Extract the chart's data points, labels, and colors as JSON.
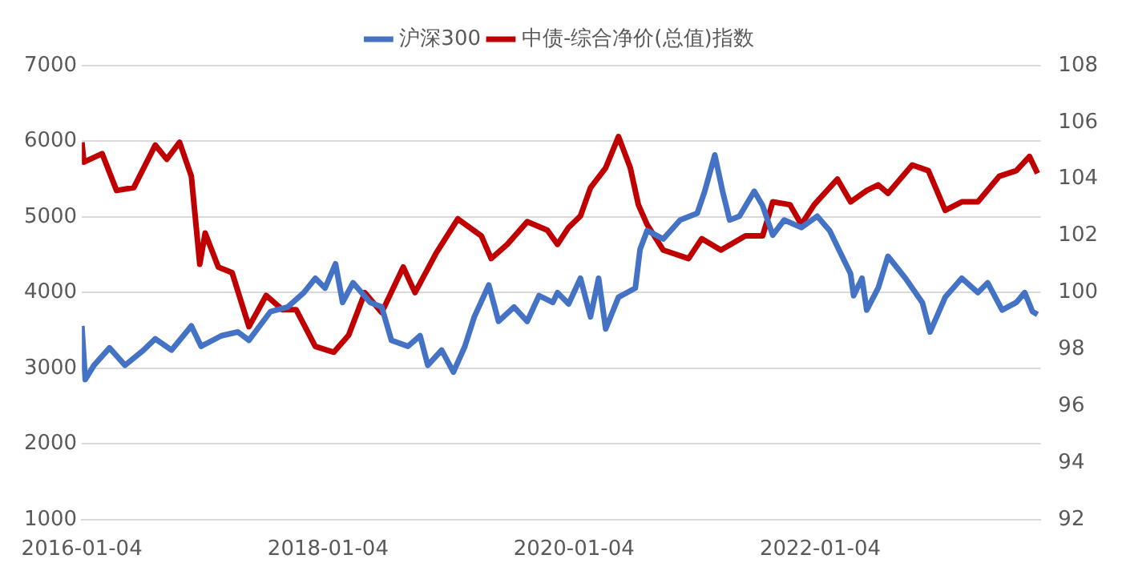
{
  "chart_data": {
    "type": "line",
    "xlim": [
      "2016-01-04",
      "2023-10-20"
    ],
    "xticks": [
      "2016-01-04",
      "2018-01-04",
      "2020-01-04",
      "2022-01-04"
    ],
    "ylim": [
      1000,
      7000
    ],
    "yticks": [
      1000,
      2000,
      3000,
      4000,
      5000,
      6000,
      7000
    ],
    "y2lim": [
      92,
      108
    ],
    "y2ticks": [
      92,
      94,
      96,
      98,
      100,
      102,
      104,
      106,
      108
    ],
    "grid": "y",
    "legend": "top",
    "marker": "none",
    "line_style": "solid",
    "series": [
      {
        "name": "沪深300",
        "color": "#4472c4",
        "x": [
          "2016-01-04",
          "2016-01-14",
          "2016-02-09",
          "2016-03-26",
          "2016-05-11",
          "2016-07-05",
          "2016-08-09",
          "2016-09-26",
          "2016-11-24",
          "2016-12-23",
          "2017-02-21",
          "2017-04-11",
          "2017-05-14",
          "2017-07-17",
          "2017-09-06",
          "2017-10-24",
          "2017-11-27",
          "2017-12-26",
          "2018-01-26",
          "2018-02-16",
          "2018-03-19",
          "2018-05-09",
          "2018-06-12",
          "2018-07-11",
          "2018-08-29",
          "2018-10-04",
          "2018-10-27",
          "2018-12-07",
          "2019-01-11",
          "2019-02-14",
          "2019-03-14",
          "2019-04-26",
          "2019-05-25",
          "2019-07-10",
          "2019-08-18",
          "2019-09-22",
          "2019-11-02",
          "2019-11-16",
          "2019-12-19",
          "2020-01-23",
          "2020-02-22",
          "2020-03-17",
          "2020-04-07",
          "2020-05-15",
          "2020-07-04",
          "2020-07-18",
          "2020-08-08",
          "2020-09-25",
          "2020-11-14",
          "2021-01-04",
          "2021-01-26",
          "2021-02-25",
          "2021-03-20",
          "2021-04-10",
          "2021-05-09",
          "2021-06-22",
          "2021-07-17",
          "2021-08-16",
          "2021-09-19",
          "2021-11-09",
          "2021-12-26",
          "2022-02-01",
          "2022-02-28",
          "2022-04-04",
          "2022-04-13",
          "2022-05-08",
          "2022-05-22",
          "2022-06-25",
          "2022-07-24",
          "2022-09-14",
          "2022-11-03",
          "2022-11-26",
          "2023-01-10",
          "2023-02-28",
          "2023-04-17",
          "2023-05-16",
          "2023-06-28",
          "2023-08-09",
          "2023-09-03",
          "2023-09-26",
          "2023-10-11"
        ],
        "values": [
          3560,
          2850,
          3040,
          3270,
          3040,
          3240,
          3390,
          3240,
          3560,
          3290,
          3430,
          3480,
          3370,
          3750,
          3810,
          4000,
          4190,
          4060,
          4380,
          3870,
          4130,
          3870,
          3810,
          3370,
          3290,
          3430,
          3040,
          3240,
          2950,
          3290,
          3680,
          4100,
          3620,
          3810,
          3620,
          3960,
          3870,
          4000,
          3850,
          4190,
          3680,
          4190,
          3520,
          3940,
          4060,
          4570,
          4820,
          4710,
          4960,
          5050,
          5340,
          5820,
          5340,
          4960,
          5010,
          5340,
          5150,
          4760,
          4960,
          4860,
          5010,
          4820,
          4570,
          4250,
          3960,
          4190,
          3770,
          4060,
          4480,
          4190,
          3870,
          3480,
          3940,
          4190,
          4000,
          4130,
          3770,
          3870,
          4000,
          3750,
          3710
        ]
      },
      {
        "name": "中债-综合净价(总值)指数",
        "color": "#c00000",
        "axis": "y2",
        "x": [
          "2016-01-04",
          "2016-01-10",
          "2016-03-04",
          "2016-04-16",
          "2016-06-06",
          "2016-08-09",
          "2016-09-12",
          "2016-10-20",
          "2016-11-24",
          "2016-12-19",
          "2017-01-04",
          "2017-02-12",
          "2017-03-25",
          "2017-05-14",
          "2017-07-04",
          "2017-08-21",
          "2017-10-01",
          "2017-11-27",
          "2018-01-21",
          "2018-03-06",
          "2018-04-23",
          "2018-06-12",
          "2018-08-15",
          "2018-09-19",
          "2018-11-21",
          "2019-01-24",
          "2019-04-04",
          "2019-05-03",
          "2019-06-20",
          "2019-08-18",
          "2019-10-17",
          "2019-11-16",
          "2019-12-19",
          "2020-01-23",
          "2020-02-22",
          "2020-04-07",
          "2020-05-15",
          "2020-06-19",
          "2020-07-13",
          "2020-08-08",
          "2020-09-25",
          "2020-12-09",
          "2021-01-17",
          "2021-03-15",
          "2021-05-27",
          "2021-07-17",
          "2021-08-16",
          "2021-10-06",
          "2021-11-09",
          "2021-12-17",
          "2022-02-24",
          "2022-04-04",
          "2022-05-22",
          "2022-06-25",
          "2022-07-24",
          "2022-10-04",
          "2022-11-21",
          "2023-01-10",
          "2023-02-28",
          "2023-04-17",
          "2023-06-19",
          "2023-08-09",
          "2023-09-17",
          "2023-10-11"
        ],
        "values": [
          105.3,
          104.6,
          104.9,
          103.6,
          103.7,
          105.2,
          104.7,
          105.3,
          104.1,
          101.0,
          102.1,
          100.9,
          100.7,
          98.8,
          99.9,
          99.4,
          99.4,
          98.1,
          97.9,
          98.5,
          100.0,
          99.3,
          100.9,
          100.0,
          101.4,
          102.6,
          102.0,
          101.2,
          101.7,
          102.5,
          102.2,
          101.7,
          102.3,
          102.7,
          103.7,
          104.4,
          105.5,
          104.4,
          103.1,
          102.4,
          101.5,
          101.2,
          101.9,
          101.5,
          102.0,
          102.0,
          103.2,
          103.1,
          102.4,
          103.1,
          104.0,
          103.2,
          103.6,
          103.8,
          103.5,
          104.5,
          104.3,
          102.9,
          103.2,
          103.2,
          104.1,
          104.3,
          104.8,
          104.2
        ]
      }
    ]
  }
}
